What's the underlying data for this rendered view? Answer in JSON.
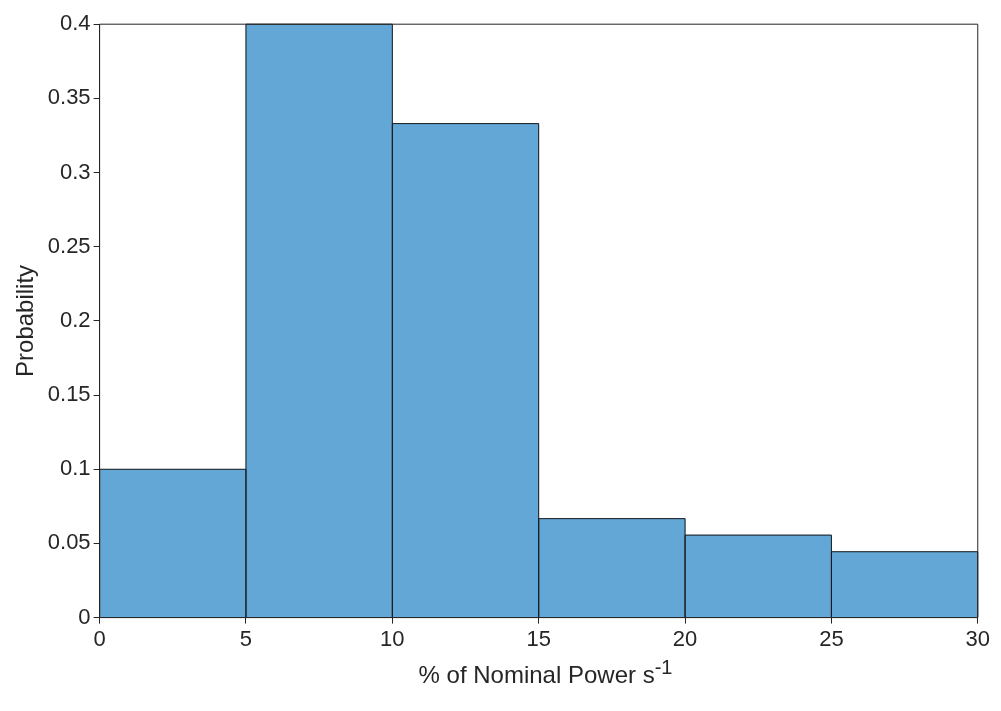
{
  "chart_data": {
    "type": "histogram",
    "xlabel": "% of Nominal Power s$^{-1}$",
    "ylabel": "Probability",
    "bins": [
      0,
      5,
      10,
      15,
      20,
      25,
      30
    ],
    "values": [
      0.1,
      0.4,
      0.333,
      0.0667,
      0.0556,
      0.0444
    ],
    "color": "#62a7d6",
    "xlim": [
      0,
      30
    ],
    "xticks": [
      0,
      5,
      10,
      15,
      20,
      25,
      30
    ],
    "ylim": [
      0,
      0.4
    ],
    "yticks": [
      0,
      0.05,
      0.1,
      0.15,
      0.2,
      0.25,
      0.3,
      0.35,
      0.4
    ],
    "grid": false,
    "legend": false
  }
}
